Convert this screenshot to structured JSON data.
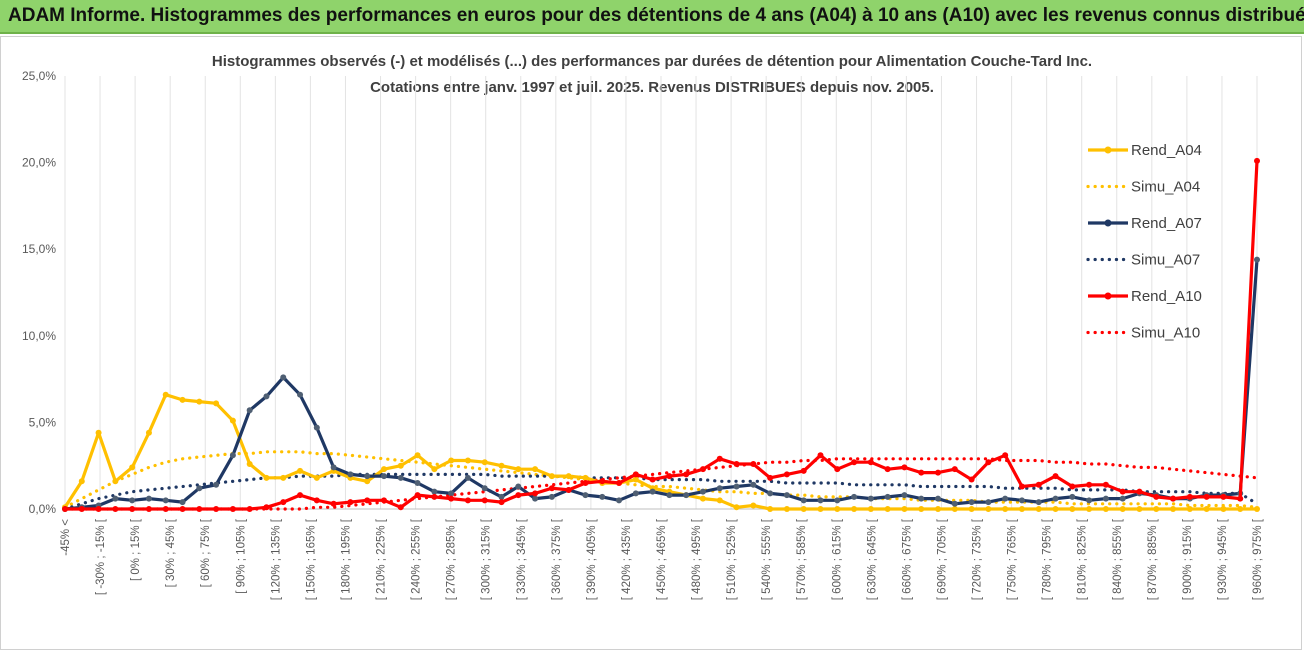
{
  "banner": {
    "title": "ADAM Informe. Histogrammes des performances en euros pour des détentions de 4 ans (A04) à 10 ans (A10) avec les revenus connus distribués"
  },
  "chart_data": {
    "type": "line",
    "title": "Histogrammes observés (-) et modélisés (...) des performances par durées de détention pour Alimentation Couche-Tard Inc.",
    "subtitle": "Cotations entre janv. 1997 et juil. 2025. Revenus DISTRIBUES depuis nov. 2005.",
    "ylim": [
      0,
      25
    ],
    "yticks": [
      "0,0%",
      "5,0%",
      "10,0%",
      "15,0%",
      "20,0%",
      "25,0%"
    ],
    "ytick_values": [
      0,
      5,
      10,
      15,
      20,
      25
    ],
    "grid": "vertical",
    "legend_position": "right",
    "x_labels_shown": [
      "-45% <",
      "[ -30% ; -15% [",
      "[ 0% ; 15% [",
      "[ 30% ; 45% [",
      "[ 60% ; 75% [",
      "[ 90% ; 105% [",
      "[ 120% ; 135% [",
      "[ 150% ; 165% [",
      "[ 180% ; 195% [",
      "[ 210% ; 225% [",
      "[ 240% ; 255% [",
      "[ 270% ; 285% [",
      "[ 300% ; 315% [",
      "[ 330% ; 345% [",
      "[ 360% ; 375% [",
      "[ 390% ; 405% [",
      "[ 420% ; 435% [",
      "[ 450% ; 465% [",
      "[ 480% ; 495% [",
      "[ 510% ; 525% [",
      "[ 540% ; 555% [",
      "[ 570% ; 585% [",
      "[ 600% ; 615% [",
      "[ 630% ; 645% [",
      "[ 660% ; 675% [",
      "[ 690% ; 705% [",
      "[ 720% ; 735% [",
      "[ 750% ; 765% [",
      "[ 780% ; 795% [",
      "[ 810% ; 825% [",
      "[ 840% ; 855% [",
      "[ 870% ; 885% [",
      "[ 900% ; 915% [",
      "[ 930% ; 945% [",
      "[ 960% ; 975% ["
    ],
    "series": [
      {
        "name": "Rend_A04",
        "color": "#ffc000",
        "style": "solid",
        "values": [
          0.1,
          1.6,
          4.4,
          1.6,
          2.4,
          4.4,
          6.6,
          6.3,
          6.2,
          6.1,
          5.1,
          2.6,
          1.8,
          1.8,
          2.2,
          1.8,
          2.2,
          1.8,
          1.6,
          2.3,
          2.5,
          3.1,
          2.3,
          2.8,
          2.8,
          2.7,
          2.5,
          2.3,
          2.3,
          1.9,
          1.9,
          1.8,
          1.5,
          1.5,
          1.7,
          1.2,
          1.0,
          0.8,
          0.6,
          0.5,
          0.1,
          0.2,
          0.0,
          0.0,
          0.0,
          0.0,
          0.0,
          0.0,
          0.0,
          0.0,
          0.0,
          0.0,
          0.0,
          0.0,
          0.0,
          0.0,
          0.0,
          0.0,
          0.0,
          0.0,
          0.0,
          0.0,
          0.0,
          0.0,
          0.0,
          0.0,
          0.0,
          0.0,
          0.0,
          0.0,
          0.0,
          0.0
        ]
      },
      {
        "name": "Simu_A04",
        "color": "#ffc000",
        "style": "dotted",
        "values": [
          0.1,
          0.6,
          1.1,
          1.6,
          2.0,
          2.4,
          2.7,
          2.9,
          3.0,
          3.1,
          3.2,
          3.2,
          3.3,
          3.3,
          3.3,
          3.2,
          3.2,
          3.1,
          3.0,
          2.9,
          2.8,
          2.7,
          2.6,
          2.5,
          2.4,
          2.3,
          2.2,
          2.1,
          2.0,
          1.9,
          1.8,
          1.7,
          1.6,
          1.5,
          1.4,
          1.3,
          1.3,
          1.2,
          1.1,
          1.0,
          1.0,
          0.9,
          0.9,
          0.8,
          0.8,
          0.7,
          0.7,
          0.7,
          0.6,
          0.6,
          0.6,
          0.5,
          0.5,
          0.5,
          0.5,
          0.4,
          0.4,
          0.4,
          0.4,
          0.4,
          0.3,
          0.3,
          0.3,
          0.3,
          0.3,
          0.3,
          0.3,
          0.2,
          0.2,
          0.2,
          0.2,
          0.1
        ]
      },
      {
        "name": "Rend_A07",
        "color": "#1f3864",
        "style": "solid",
        "values": [
          0.0,
          0.1,
          0.2,
          0.6,
          0.5,
          0.6,
          0.5,
          0.4,
          1.2,
          1.4,
          3.1,
          5.7,
          6.5,
          7.6,
          6.6,
          4.7,
          2.4,
          2.0,
          1.9,
          1.9,
          1.8,
          1.5,
          1.0,
          0.9,
          1.8,
          1.2,
          0.7,
          1.3,
          0.6,
          0.7,
          1.1,
          0.8,
          0.7,
          0.5,
          0.9,
          1.0,
          0.8,
          0.8,
          1.0,
          1.2,
          1.3,
          1.4,
          0.9,
          0.8,
          0.5,
          0.5,
          0.5,
          0.7,
          0.6,
          0.7,
          0.8,
          0.6,
          0.6,
          0.3,
          0.4,
          0.4,
          0.6,
          0.5,
          0.4,
          0.6,
          0.7,
          0.5,
          0.6,
          0.6,
          0.9,
          0.8,
          0.6,
          0.6,
          0.8,
          0.8,
          0.9,
          14.4
        ]
      },
      {
        "name": "Simu_A07",
        "color": "#1f3864",
        "style": "dotted",
        "values": [
          0.0,
          0.3,
          0.6,
          0.8,
          1.0,
          1.1,
          1.2,
          1.3,
          1.4,
          1.5,
          1.6,
          1.7,
          1.8,
          1.8,
          1.9,
          1.9,
          1.9,
          2.0,
          2.0,
          2.0,
          2.0,
          2.0,
          2.0,
          2.0,
          2.0,
          2.0,
          1.9,
          1.9,
          1.9,
          1.9,
          1.9,
          1.8,
          1.8,
          1.8,
          1.8,
          1.7,
          1.7,
          1.7,
          1.7,
          1.6,
          1.6,
          1.6,
          1.6,
          1.5,
          1.5,
          1.5,
          1.5,
          1.4,
          1.4,
          1.4,
          1.4,
          1.3,
          1.3,
          1.3,
          1.3,
          1.3,
          1.2,
          1.2,
          1.2,
          1.2,
          1.1,
          1.1,
          1.1,
          1.1,
          1.0,
          1.0,
          1.0,
          1.0,
          0.9,
          0.9,
          0.9,
          0.3
        ]
      },
      {
        "name": "Rend_A10",
        "color": "#ff0000",
        "style": "solid",
        "values": [
          0.0,
          0.0,
          0.0,
          0.0,
          0.0,
          0.0,
          0.0,
          0.0,
          0.0,
          0.0,
          0.0,
          0.0,
          0.1,
          0.4,
          0.8,
          0.5,
          0.3,
          0.4,
          0.5,
          0.5,
          0.1,
          0.8,
          0.7,
          0.6,
          0.5,
          0.5,
          0.4,
          0.8,
          0.9,
          1.2,
          1.1,
          1.5,
          1.6,
          1.5,
          2.0,
          1.7,
          1.9,
          2.0,
          2.3,
          2.9,
          2.6,
          2.6,
          1.8,
          2.0,
          2.2,
          3.1,
          2.3,
          2.7,
          2.7,
          2.3,
          2.4,
          2.1,
          2.1,
          2.3,
          1.7,
          2.7,
          3.1,
          1.3,
          1.4,
          1.9,
          1.3,
          1.4,
          1.4,
          1.0,
          1.0,
          0.7,
          0.6,
          0.7,
          0.7,
          0.7,
          0.6,
          20.1
        ]
      },
      {
        "name": "Simu_A10",
        "color": "#ff0000",
        "style": "dotted",
        "values": [
          0.0,
          0.0,
          0.0,
          0.0,
          0.0,
          0.0,
          0.0,
          0.0,
          0.0,
          0.0,
          0.0,
          0.0,
          0.0,
          0.0,
          0.0,
          0.1,
          0.1,
          0.2,
          0.3,
          0.4,
          0.5,
          0.6,
          0.7,
          0.8,
          0.9,
          1.0,
          1.1,
          1.2,
          1.3,
          1.4,
          1.5,
          1.6,
          1.7,
          1.8,
          1.9,
          2.0,
          2.1,
          2.2,
          2.3,
          2.4,
          2.5,
          2.6,
          2.7,
          2.7,
          2.8,
          2.8,
          2.9,
          2.9,
          2.9,
          2.9,
          2.9,
          2.9,
          2.9,
          2.9,
          2.9,
          2.9,
          2.8,
          2.8,
          2.8,
          2.7,
          2.7,
          2.6,
          2.6,
          2.5,
          2.4,
          2.4,
          2.3,
          2.2,
          2.1,
          2.0,
          1.9,
          1.8
        ]
      }
    ]
  }
}
